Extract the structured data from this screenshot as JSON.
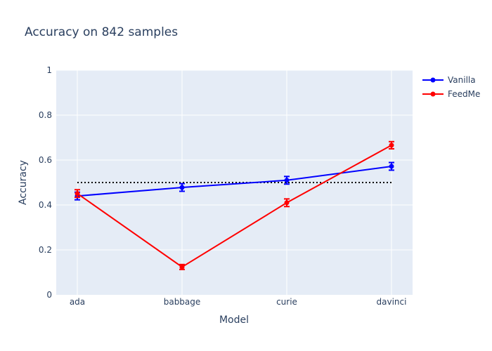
{
  "chart_data": {
    "type": "line",
    "title": "Accuracy on 842 samples",
    "xlabel": "Model",
    "ylabel": "Accuracy",
    "categories": [
      "ada",
      "babbage",
      "curie",
      "davinci"
    ],
    "ylim": [
      0,
      1
    ],
    "yticks": [
      {
        "value": 0,
        "label": "0"
      },
      {
        "value": 0.2,
        "label": "0.2"
      },
      {
        "value": 0.4,
        "label": "0.4"
      },
      {
        "value": 0.6,
        "label": "0.6"
      },
      {
        "value": 0.8,
        "label": "0.8"
      },
      {
        "value": 1,
        "label": "1"
      }
    ],
    "grid": true,
    "legend_position": "top-right",
    "reference_line": {
      "value": 0.5,
      "style": "dotted",
      "color": "#000000"
    },
    "series": [
      {
        "name": "Vanilla",
        "color": "#0000ff",
        "values": [
          0.44,
          0.478,
          0.51,
          0.572
        ],
        "errors": [
          0.017,
          0.017,
          0.017,
          0.017
        ]
      },
      {
        "name": "FeedMe",
        "color": "#ff0000",
        "values": [
          0.451,
          0.124,
          0.41,
          0.666
        ],
        "errors": [
          0.017,
          0.011,
          0.017,
          0.016
        ]
      }
    ]
  }
}
